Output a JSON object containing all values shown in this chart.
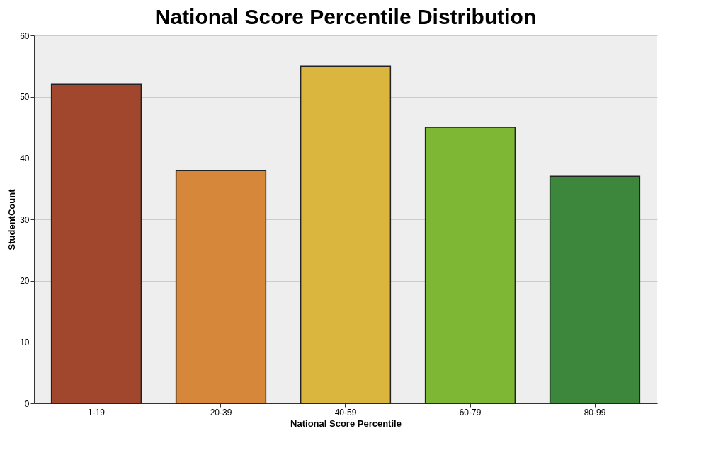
{
  "chart_data": {
    "type": "bar",
    "title": "National Score Percentile Distribution",
    "xlabel": "National Score Percentile",
    "ylabel": "StudentCount",
    "categories": [
      "1-19",
      "20-39",
      "40-59",
      "60-79",
      "80-99"
    ],
    "values": [
      52,
      38,
      55,
      45,
      37
    ],
    "colors": [
      "#a0472e",
      "#d6873a",
      "#dbb63e",
      "#7db733",
      "#3c873c"
    ],
    "ylim": [
      0,
      60
    ],
    "yticks": [
      0,
      10,
      20,
      30,
      40,
      50,
      60
    ],
    "grid": "y"
  }
}
